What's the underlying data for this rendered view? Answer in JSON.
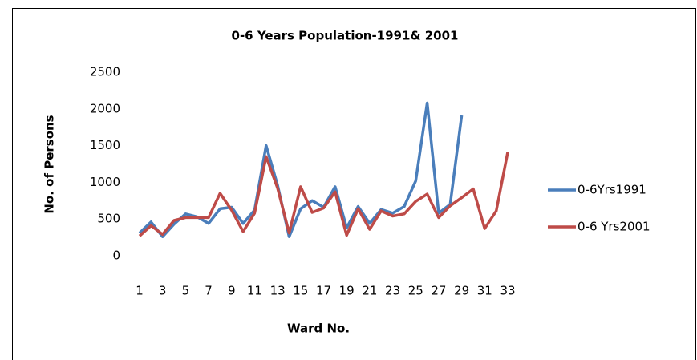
{
  "chart_data": {
    "type": "line",
    "title": "0-6 Years Population-1991& 2001",
    "x_label": "Ward No.",
    "y_label": "No. of Persons",
    "categories": [
      "1",
      null,
      "3",
      null,
      "5",
      null,
      "7",
      null,
      "9",
      null,
      "11",
      null,
      "13",
      null,
      "15",
      null,
      "17",
      null,
      "19",
      null,
      "21",
      null,
      "23",
      null,
      "25",
      null,
      "27",
      null,
      "29",
      null,
      "31",
      null,
      "33"
    ],
    "series": [
      {
        "name": "0-6Yrs1991",
        "color": "#4a7ebb",
        "values": [
          310,
          460,
          260,
          430,
          570,
          530,
          440,
          640,
          660,
          440,
          620,
          1500,
          960,
          260,
          640,
          750,
          660,
          940,
          380,
          670,
          440,
          630,
          580,
          670,
          1020,
          2080,
          580,
          700,
          1910,
          null,
          null,
          null,
          null
        ]
      },
      {
        "name": "0-6 Yrs2001",
        "color": "#be4b48",
        "values": [
          270,
          410,
          290,
          480,
          520,
          520,
          520,
          850,
          620,
          330,
          580,
          1350,
          920,
          310,
          940,
          590,
          650,
          870,
          280,
          640,
          360,
          610,
          540,
          570,
          740,
          840,
          520,
          680,
          790,
          910,
          370,
          610,
          1410
        ]
      }
    ],
    "ylim": [
      0,
      2500
    ],
    "yticks": [
      0,
      500,
      1000,
      1500,
      2000,
      2500
    ],
    "grid": false,
    "legend": "right"
  }
}
